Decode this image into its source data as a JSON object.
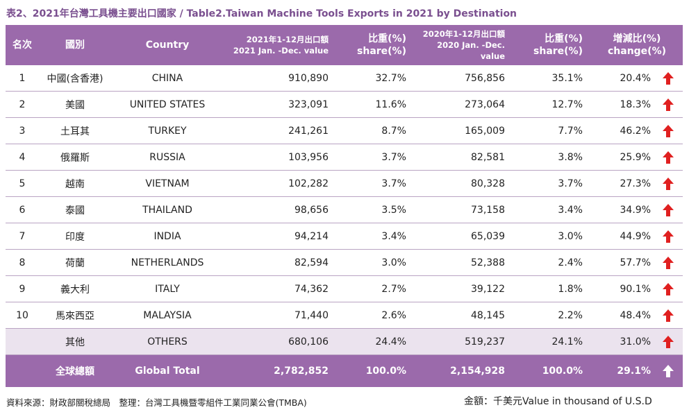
{
  "title": "表2、2021年台灣工具機主要出口國家 / Table2.Taiwan Machine Tools Exports in 2021 by Destination",
  "headers": {
    "rank": "名次",
    "region": "國別",
    "country": "Country",
    "v2021_zh": "2021年1-12月出口額",
    "v2021_en": "2021 Jan. -Dec. value",
    "share2021_zh": "比重(%)",
    "share2021_en": "share(%)",
    "v2020_zh": "2020年1-12月出口額",
    "v2020_en": "2020 Jan. -Dec. value",
    "share2020_zh": "比重(%)",
    "share2020_en": "share(%)",
    "change_zh": "增減比(%)",
    "change_en": "change(%)"
  },
  "rows": [
    {
      "rank": "1",
      "zh": "中國(含香港)",
      "en": "CHINA",
      "v2021": "910,890",
      "s2021": "32.7%",
      "v2020": "756,856",
      "s2020": "35.1%",
      "change": "20.4%"
    },
    {
      "rank": "2",
      "zh": "美國",
      "en": "UNITED STATES",
      "v2021": "323,091",
      "s2021": "11.6%",
      "v2020": "273,064",
      "s2020": "12.7%",
      "change": "18.3%"
    },
    {
      "rank": "3",
      "zh": "土耳其",
      "en": "TURKEY",
      "v2021": "241,261",
      "s2021": "8.7%",
      "v2020": "165,009",
      "s2020": "7.7%",
      "change": "46.2%"
    },
    {
      "rank": "4",
      "zh": "俄羅斯",
      "en": "RUSSIA",
      "v2021": "103,956",
      "s2021": "3.7%",
      "v2020": "82,581",
      "s2020": "3.8%",
      "change": "25.9%"
    },
    {
      "rank": "5",
      "zh": "越南",
      "en": "VIETNAM",
      "v2021": "102,282",
      "s2021": "3.7%",
      "v2020": "80,328",
      "s2020": "3.7%",
      "change": "27.3%"
    },
    {
      "rank": "6",
      "zh": "泰國",
      "en": "THAILAND",
      "v2021": "98,656",
      "s2021": "3.5%",
      "v2020": "73,158",
      "s2020": "3.4%",
      "change": "34.9%"
    },
    {
      "rank": "7",
      "zh": "印度",
      "en": "INDIA",
      "v2021": "94,214",
      "s2021": "3.4%",
      "v2020": "65,039",
      "s2020": "3.0%",
      "change": "44.9%"
    },
    {
      "rank": "8",
      "zh": "荷蘭",
      "en": "NETHERLANDS",
      "v2021": "82,594",
      "s2021": "3.0%",
      "v2020": "52,388",
      "s2020": "2.4%",
      "change": "57.7%"
    },
    {
      "rank": "9",
      "zh": "義大利",
      "en": "ITALY",
      "v2021": "74,362",
      "s2021": "2.7%",
      "v2020": "39,122",
      "s2020": "1.8%",
      "change": "90.1%"
    },
    {
      "rank": "10",
      "zh": "馬來西亞",
      "en": "MALAYSIA",
      "v2021": "71,440",
      "s2021": "2.6%",
      "v2020": "48,145",
      "s2020": "2.2%",
      "change": "48.4%"
    },
    {
      "rank": "",
      "zh": "其他",
      "en": "OTHERS",
      "v2021": "680,106",
      "s2021": "24.4%",
      "v2020": "519,237",
      "s2020": "24.1%",
      "change": "31.0%"
    }
  ],
  "total": {
    "zh": "全球總額",
    "en": "Global Total",
    "v2021": "2,782,852",
    "s2021": "100.0%",
    "v2020": "2,154,928",
    "s2020": "100.0%",
    "change": "29.1%"
  },
  "colors": {
    "header_bg": "#9b6aab",
    "title": "#7a4f8f",
    "arrow_up": "#e02020",
    "others_bg": "#ebe3ee"
  },
  "footer": {
    "source": "資料來源：財政部關稅總局　整理：台灣工具機暨零組件工業同業公會(TMBA)",
    "unit": "金額：千美元Value in thousand of U.S.D"
  }
}
